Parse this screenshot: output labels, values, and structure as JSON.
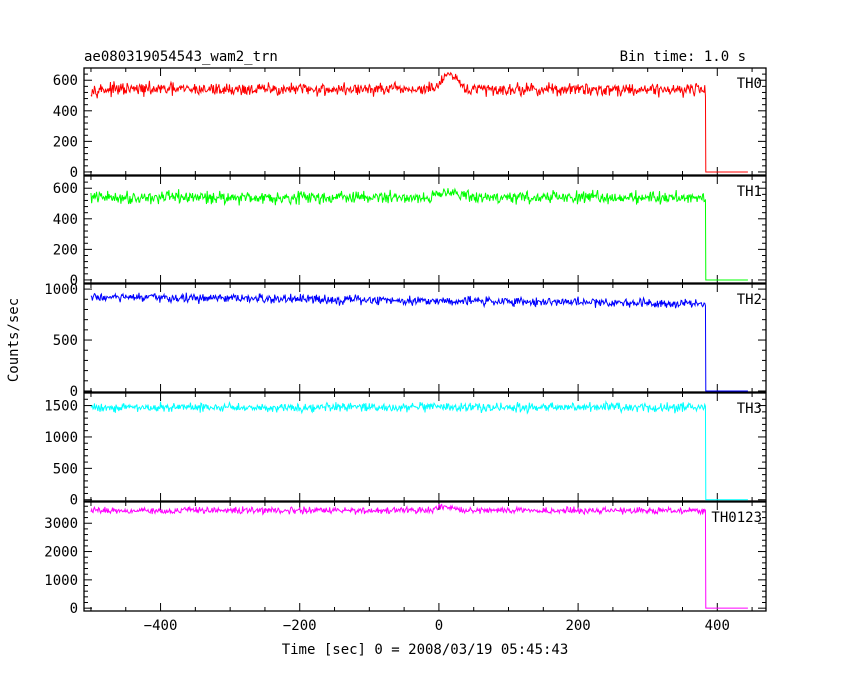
{
  "chart_data": {
    "type": "line",
    "title": "ae080319054543_wam2_trn",
    "bin_time_label": "Bin time: 1.0 s",
    "xlabel": "Time [sec] 0 = 2008/03/19 05:45:43",
    "ylabel": "Counts/sec",
    "xlim": [
      -510,
      470
    ],
    "x_ticks": [
      -400,
      -200,
      0,
      200,
      400
    ],
    "x_tick_labels": [
      "−400",
      "−200",
      "0",
      "200",
      "400"
    ],
    "data_x_range": [
      -500,
      445
    ],
    "cutoff_time": 383,
    "grid": false,
    "legend": "panel labels at right",
    "panels": [
      {
        "name": "TH0",
        "color": "#ff0000",
        "ylim": [
          -20,
          680
        ],
        "y_ticks": [
          0,
          200,
          400,
          600
        ],
        "y_tick_labels": [
          "0",
          "200",
          "400",
          "600"
        ],
        "level_before_cutoff": 540,
        "noise_amplitude": 20,
        "level_after_cutoff": 0,
        "bump": {
          "center": 15,
          "width": 15,
          "height": 90
        }
      },
      {
        "name": "TH1",
        "color": "#00ff00",
        "ylim": [
          -20,
          680
        ],
        "y_ticks": [
          0,
          200,
          400,
          600
        ],
        "y_tick_labels": [
          "0",
          "200",
          "400",
          "600"
        ],
        "level_before_cutoff": 540,
        "noise_amplitude": 20,
        "level_after_cutoff": 0,
        "bump": {
          "center": 15,
          "width": 15,
          "height": 50
        }
      },
      {
        "name": "TH2",
        "color": "#0000ff",
        "ylim": [
          -10,
          1050
        ],
        "y_ticks": [
          0,
          500,
          1000
        ],
        "y_tick_labels": [
          "0",
          "500",
          "1000"
        ],
        "level_before_cutoff": 920,
        "level_end_before_cutoff": 860,
        "noise_amplitude": 22,
        "level_after_cutoff": 0
      },
      {
        "name": "TH3",
        "color": "#00ffff",
        "ylim": [
          -20,
          1700
        ],
        "y_ticks": [
          0,
          500,
          1000,
          1500
        ],
        "y_tick_labels": [
          "0",
          "500",
          "1000",
          "1500"
        ],
        "level_before_cutoff": 1470,
        "noise_amplitude": 35,
        "level_after_cutoff": 0
      },
      {
        "name": "TH0123",
        "color": "#ff00ff",
        "ylim": [
          -100,
          3750
        ],
        "y_ticks": [
          0,
          1000,
          2000,
          3000
        ],
        "y_tick_labels": [
          "0",
          "1000",
          "2000",
          "3000"
        ],
        "level_before_cutoff": 3450,
        "noise_amplitude": 55,
        "level_after_cutoff": 0,
        "bump": {
          "center": 10,
          "width": 15,
          "height": 120
        }
      }
    ]
  }
}
